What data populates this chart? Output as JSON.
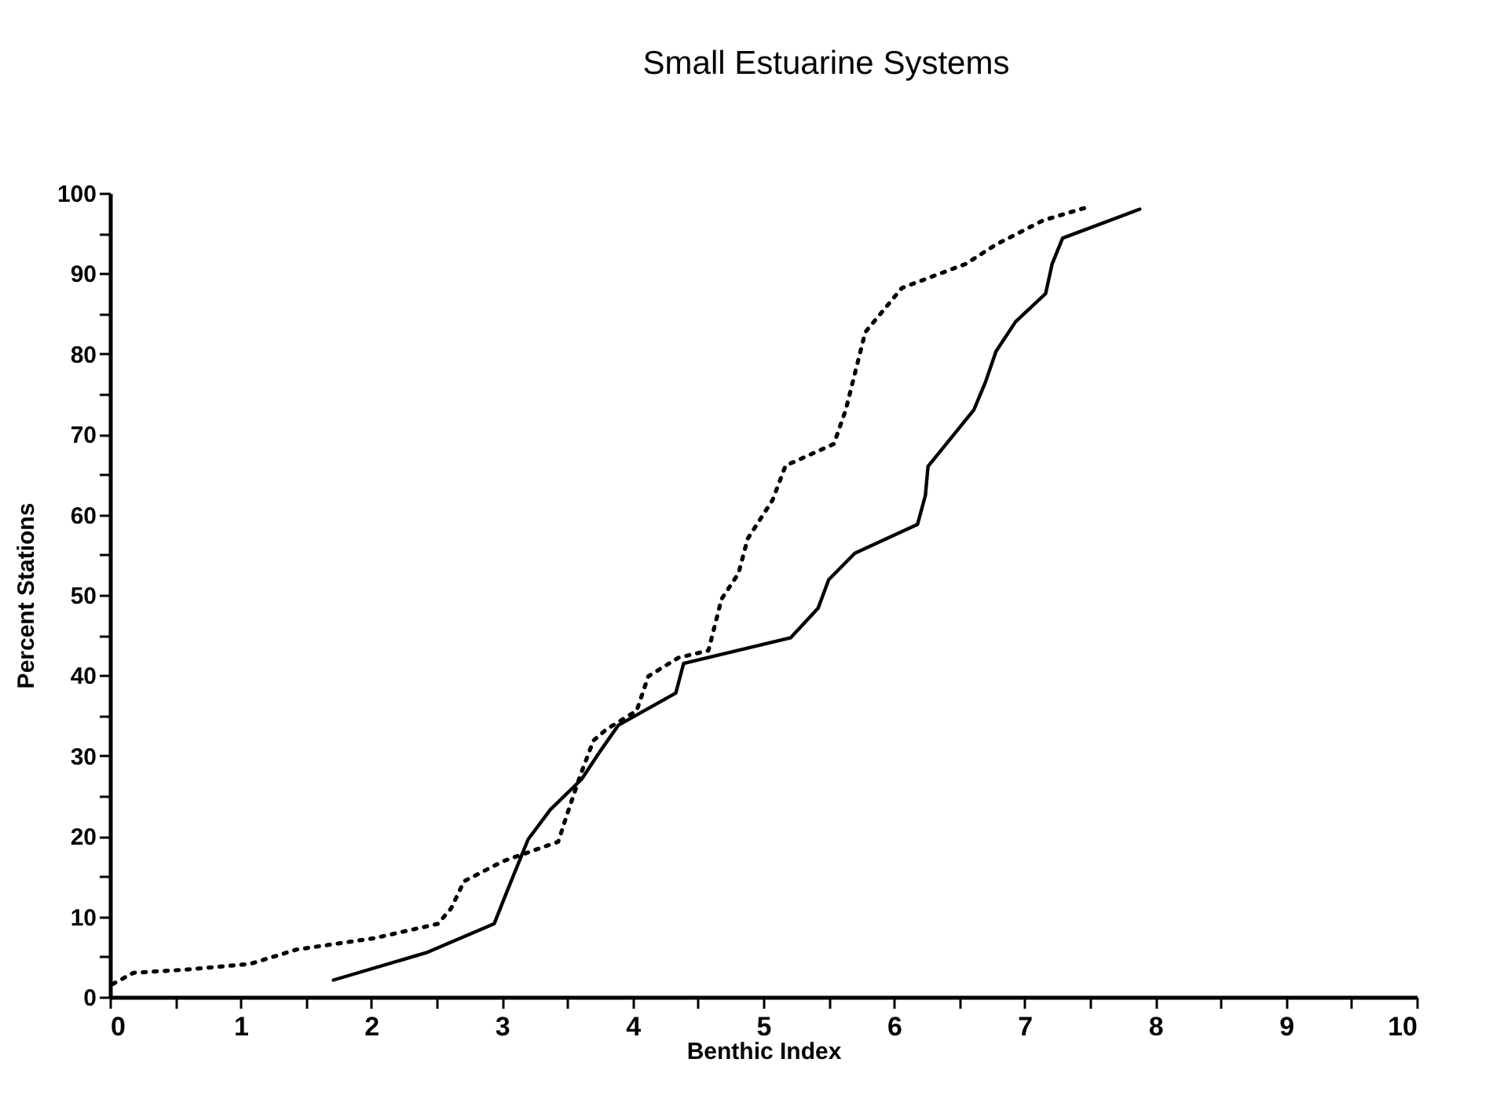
{
  "chart_data": {
    "type": "line",
    "title": "Small Estuarine Systems",
    "xlabel": "Benthic Index",
    "ylabel": "Percent Stations",
    "xlim": [
      0,
      10
    ],
    "ylim": [
      0,
      100
    ],
    "xticks": [
      0,
      {
        "value": 0.5,
        "label": null
      },
      1,
      {
        "value": 1.5,
        "label": null
      },
      2,
      {
        "value": 2.5,
        "label": null
      },
      3,
      {
        "value": 3.5,
        "label": null
      },
      4,
      {
        "value": 4.5,
        "label": null
      },
      5,
      {
        "value": 5.5,
        "label": null
      },
      6,
      {
        "value": 6.5,
        "label": null
      },
      7,
      {
        "value": 7.5,
        "label": null
      },
      8,
      {
        "value": 8.5,
        "label": null
      },
      9,
      {
        "value": 9.5,
        "label": null
      },
      10
    ],
    "yticks": [
      0,
      {
        "value": 5,
        "label": null
      },
      10,
      {
        "value": 15,
        "label": null
      },
      20,
      {
        "value": 25,
        "label": null
      },
      30,
      {
        "value": 35,
        "label": null
      },
      40,
      {
        "value": 45,
        "label": null
      },
      50,
      {
        "value": 55,
        "label": null
      },
      60,
      {
        "value": 65,
        "label": null
      },
      70,
      {
        "value": 75,
        "label": null
      },
      80,
      {
        "value": 85,
        "label": null
      },
      90,
      {
        "value": 95,
        "label": null
      },
      100
    ],
    "grid": false,
    "legend": false,
    "marker": "none",
    "series": [
      {
        "color": "#000000",
        "line_style": "solid",
        "x": [
          1.71,
          2.42,
          2.94,
          3.04,
          3.2,
          3.37,
          3.61,
          3.74,
          3.89,
          4.33,
          4.39,
          5.21,
          5.42,
          5.5,
          5.7,
          6.18,
          6.24,
          6.26,
          6.61,
          6.7,
          6.78,
          6.93,
          7.16,
          7.21,
          7.29,
          7.88
        ],
        "values": [
          2.1,
          5.5,
          9.1,
          13.2,
          19.6,
          23.3,
          27.1,
          30.3,
          33.8,
          37.8,
          41.5,
          44.7,
          48.4,
          51.9,
          55.2,
          58.8,
          62.4,
          66,
          73,
          76.5,
          80.3,
          84,
          87.5,
          91.2,
          94.4,
          98
        ]
      },
      {
        "color": "#000000",
        "line_style": "dotted",
        "x": [
          0.02,
          0.18,
          0.58,
          1.07,
          1.43,
          2.02,
          2.51,
          2.61,
          2.71,
          3.01,
          3.43,
          3.5,
          3.6,
          3.7,
          3.8,
          4.03,
          4.12,
          4.35,
          4.58,
          4.68,
          4.81,
          4.88,
          5.07,
          5.17,
          5.54,
          5.63,
          5.78,
          6.06,
          6.55,
          6.78,
          7.14,
          7.47
        ],
        "values": [
          1.6,
          3,
          3.4,
          4.1,
          5.9,
          7.3,
          9.1,
          11,
          14.4,
          16.9,
          19.3,
          22.8,
          27.6,
          31.9,
          33.3,
          35.6,
          39.9,
          42.2,
          43.1,
          49.5,
          52.7,
          57,
          61.8,
          66.1,
          68.8,
          73,
          82.7,
          88.2,
          91.2,
          93.6,
          96.6,
          98.2
        ]
      }
    ]
  }
}
